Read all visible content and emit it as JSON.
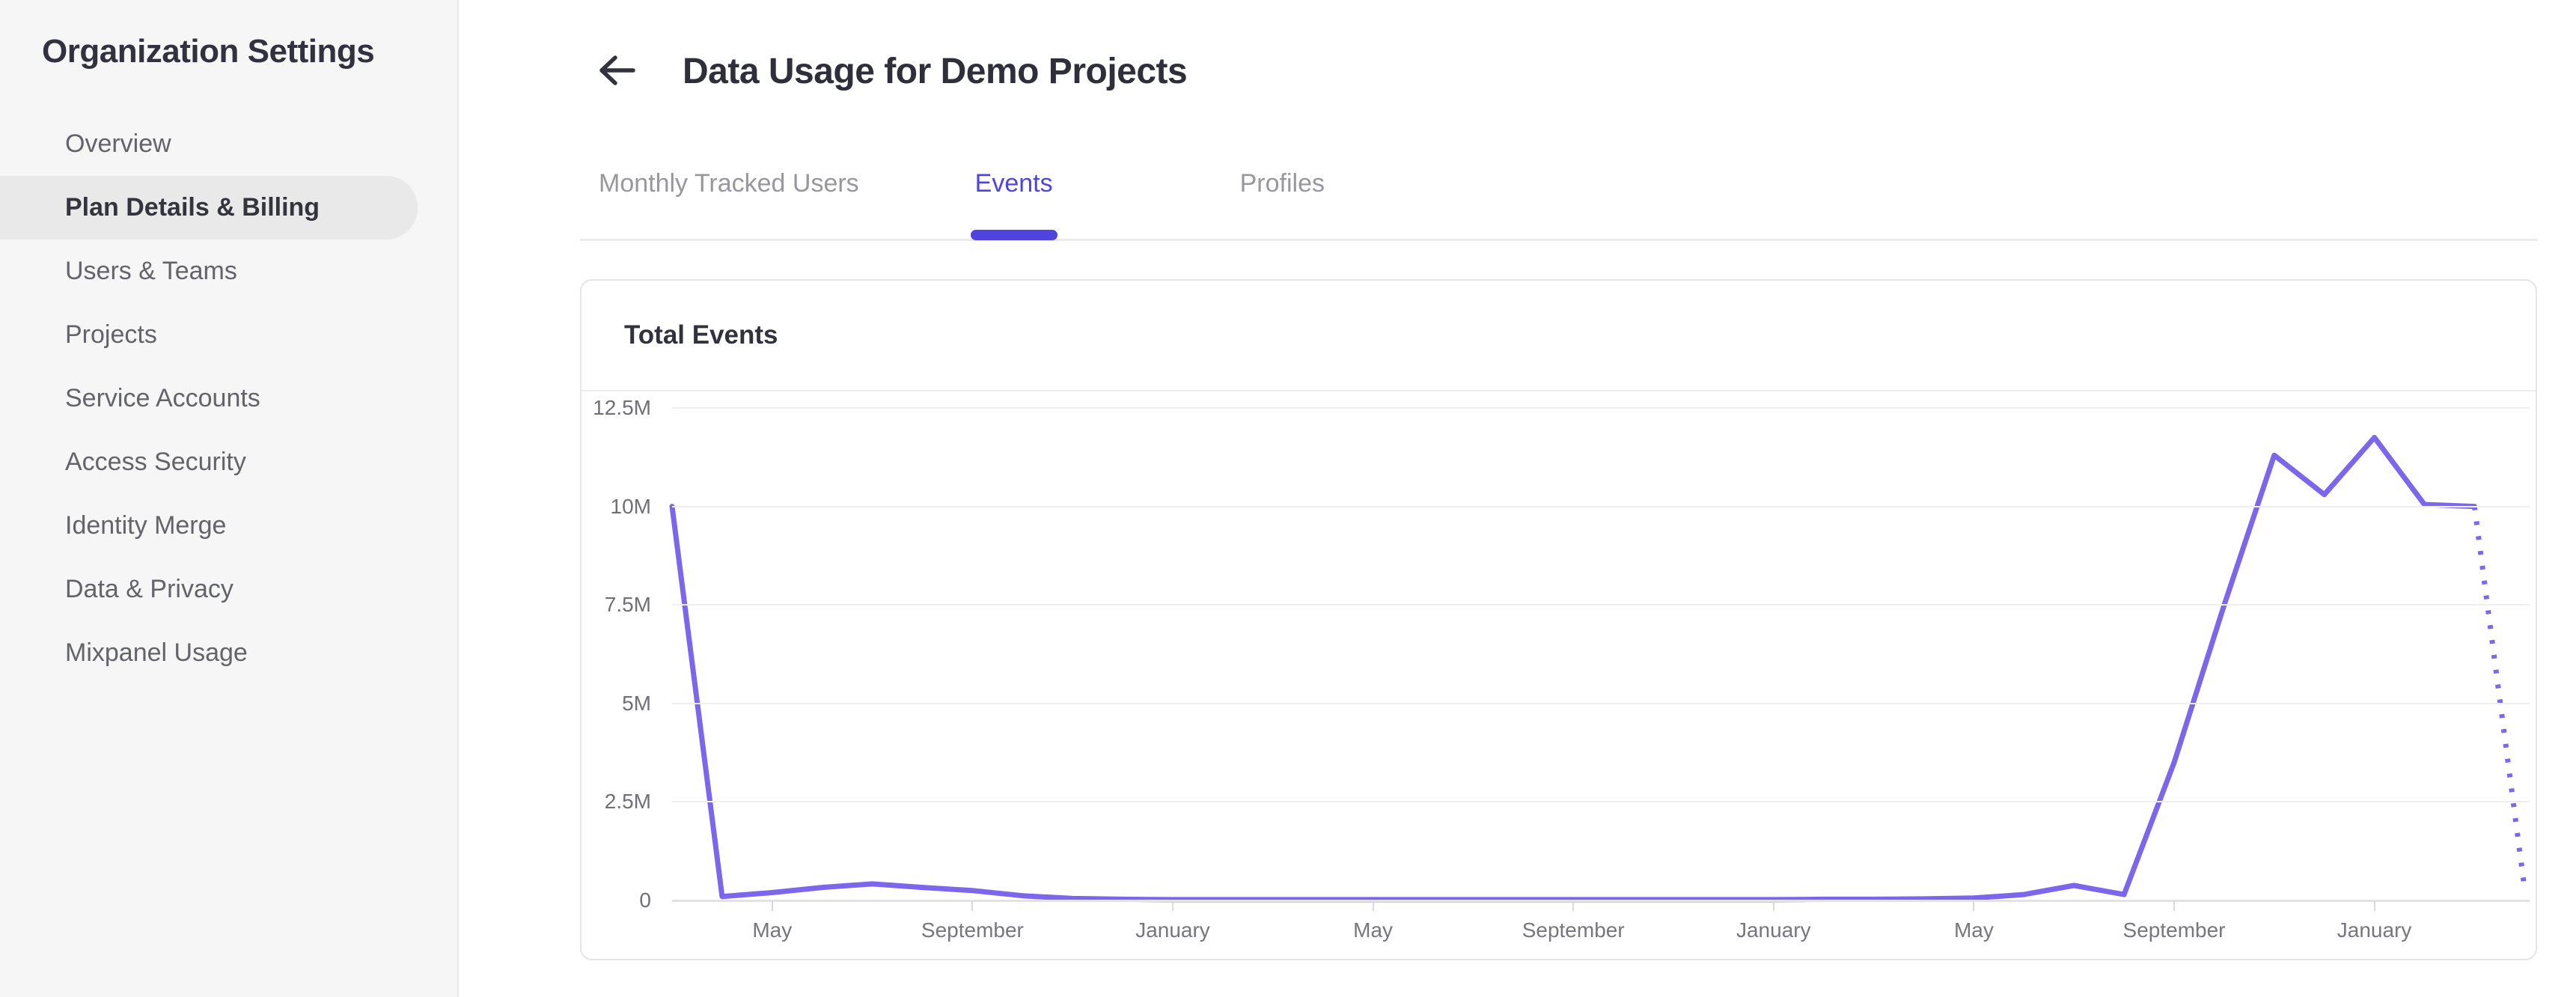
{
  "sidebar": {
    "title": "Organization Settings",
    "items": [
      {
        "label": "Overview",
        "active": false
      },
      {
        "label": "Plan Details & Billing",
        "active": true
      },
      {
        "label": "Users & Teams",
        "active": false
      },
      {
        "label": "Projects",
        "active": false
      },
      {
        "label": "Service Accounts",
        "active": false
      },
      {
        "label": "Access Security",
        "active": false
      },
      {
        "label": "Identity Merge",
        "active": false
      },
      {
        "label": "Data & Privacy",
        "active": false
      },
      {
        "label": "Mixpanel Usage",
        "active": false
      }
    ]
  },
  "header": {
    "back_icon": "arrow-left-icon",
    "title": "Data Usage for Demo Projects"
  },
  "tabs": [
    {
      "label": "Monthly Tracked Users",
      "active": false
    },
    {
      "label": "Events",
      "active": true
    },
    {
      "label": "Profiles",
      "active": false
    }
  ],
  "card": {
    "title": "Total Events"
  },
  "colors": {
    "accent": "#4f44e0",
    "line": "#7b66ec",
    "sidebar_bg": "#f6f6f7",
    "pill_bg": "#e9e9ea",
    "grid": "#efeff0",
    "baseline": "#e2e2e4",
    "axis_text": "#6f6f75"
  },
  "chart_data": {
    "type": "line",
    "title": "Total Events",
    "ylabel": "",
    "xlabel": "",
    "ylim_events": [
      0,
      12500000
    ],
    "y_tick_labels": [
      "0",
      "2.5M",
      "5M",
      "7.5M",
      "10M",
      "12.5M"
    ],
    "y_tick_values_millions": [
      0,
      2.5,
      5,
      7.5,
      10,
      12.5
    ],
    "x_tick_labels": [
      "May",
      "September",
      "January",
      "May",
      "September",
      "January",
      "May",
      "September",
      "January"
    ],
    "x_tick_point_indices": [
      2,
      6,
      10,
      14,
      18,
      22,
      26,
      30,
      34
    ],
    "grid": "horizontal-only",
    "legend": "none",
    "series": [
      {
        "name": "Total Events",
        "cadence": "monthly",
        "values_millions": [
          10.0,
          0.1,
          0.2,
          0.33,
          0.42,
          0.33,
          0.25,
          0.12,
          0.05,
          0.03,
          0.02,
          0.02,
          0.02,
          0.02,
          0.02,
          0.02,
          0.02,
          0.02,
          0.02,
          0.02,
          0.02,
          0.02,
          0.02,
          0.03,
          0.03,
          0.04,
          0.06,
          0.15,
          0.38,
          0.15,
          3.5,
          7.5,
          11.3,
          10.3,
          11.75,
          10.05,
          10.0,
          0.3
        ],
        "dotted_from_index": 36,
        "dotted_meaning": "incomplete-period projection"
      }
    ]
  }
}
